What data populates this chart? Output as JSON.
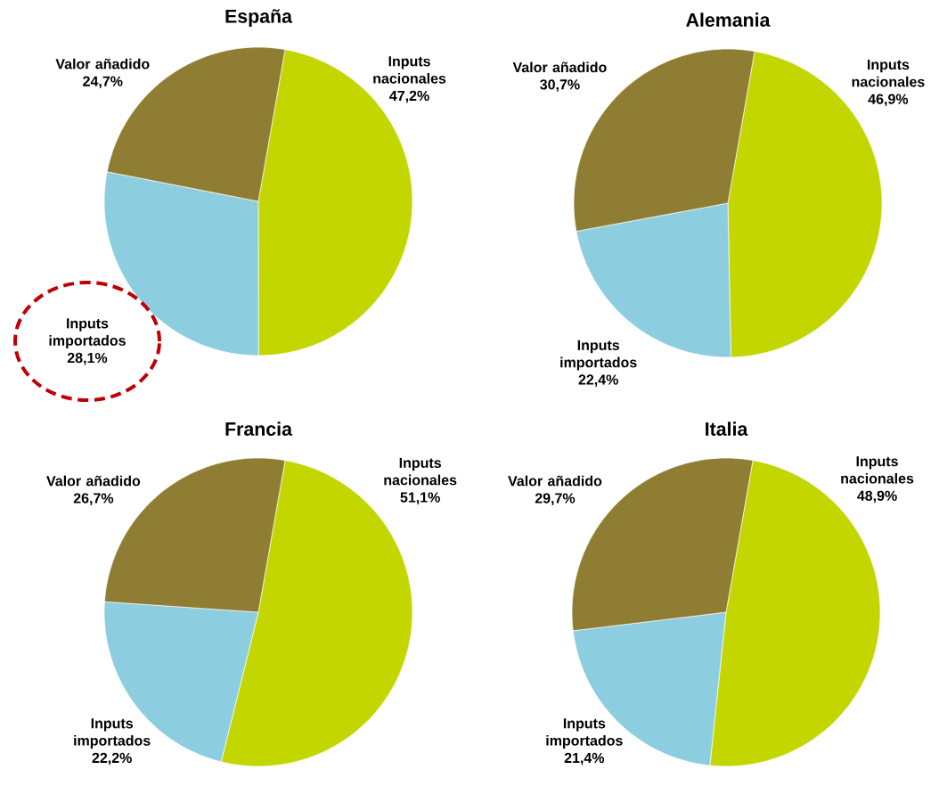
{
  "chart_data": [
    {
      "type": "pie",
      "title": "España",
      "categories": [
        "Inputs nacionales",
        "Inputs importados",
        "Valor añadido"
      ],
      "values": [
        47.2,
        28.1,
        24.7
      ],
      "colors": [
        "#c3d600",
        "#8ccee0",
        "#8f7d33"
      ],
      "value_labels": [
        "47,2%",
        "28,1%",
        "24,7%"
      ]
    },
    {
      "type": "pie",
      "title": "Alemania",
      "categories": [
        "Inputs nacionales",
        "Inputs importados",
        "Valor añadido"
      ],
      "values": [
        46.9,
        22.4,
        30.7
      ],
      "colors": [
        "#c3d600",
        "#8ccee0",
        "#8f7d33"
      ],
      "value_labels": [
        "46,9%",
        "22,4%",
        "30,7%"
      ]
    },
    {
      "type": "pie",
      "title": "Francia",
      "categories": [
        "Inputs nacionales",
        "Inputs importados",
        "Valor añadido"
      ],
      "values": [
        51.1,
        22.2,
        26.7
      ],
      "colors": [
        "#c3d600",
        "#8ccee0",
        "#8f7d33"
      ],
      "value_labels": [
        "51,1%",
        "22,2%",
        "26,7%"
      ]
    },
    {
      "type": "pie",
      "title": "Italia",
      "categories": [
        "Inputs nacionales",
        "Inputs importados",
        "Valor añadido"
      ],
      "values": [
        48.9,
        21.4,
        29.7
      ],
      "colors": [
        "#c3d600",
        "#8ccee0",
        "#8f7d33"
      ],
      "value_labels": [
        "48,9%",
        "21,4%",
        "29,7%"
      ]
    }
  ]
}
